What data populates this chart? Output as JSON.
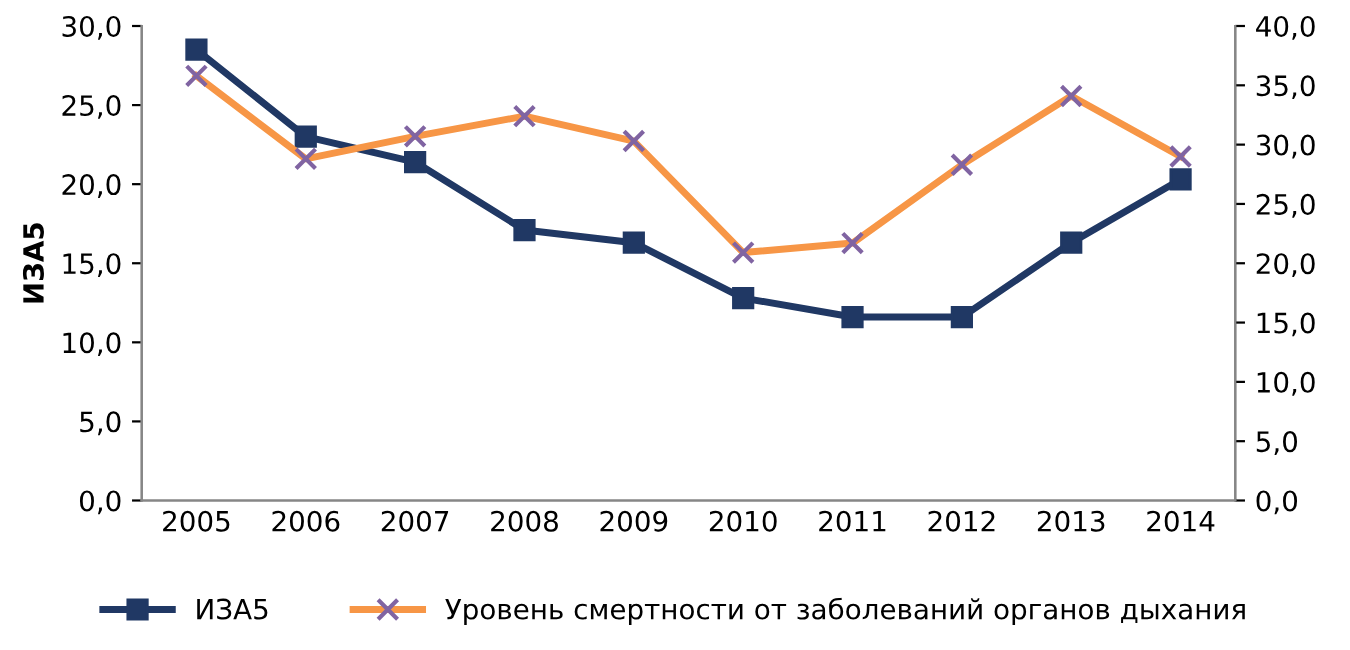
{
  "chart_data": {
    "type": "line",
    "ylabel": "ИЗА5",
    "categories": [
      "2005",
      "2006",
      "2007",
      "2008",
      "2009",
      "2010",
      "2011",
      "2012",
      "2013",
      "2014"
    ],
    "series": [
      {
        "name": "ИЗА5",
        "color": "#203864",
        "marker": "square",
        "values": [
          28.5,
          23.0,
          21.4,
          17.1,
          16.3,
          12.8,
          11.6,
          11.6,
          16.3,
          20.3
        ]
      },
      {
        "name": "Уровень смертности от заболеваний органов дыхания",
        "color": "#f79646",
        "marker": "cross",
        "axis": "y2",
        "values": [
          35.8,
          28.8,
          30.7,
          32.4,
          30.3,
          20.9,
          21.7,
          28.3,
          34.1,
          29.0
        ]
      }
    ],
    "ylim": [
      0,
      30
    ],
    "yticks": [
      {
        "value": 0,
        "label": "0,0"
      },
      {
        "value": 5,
        "label": "5,0"
      },
      {
        "value": 10,
        "label": "10,0"
      },
      {
        "value": 15,
        "label": "15,0"
      },
      {
        "value": 20,
        "label": "20,0"
      },
      {
        "value": 25,
        "label": "25,0"
      },
      {
        "value": 30,
        "label": "30,0"
      }
    ],
    "y2lim": [
      0,
      40
    ],
    "y2ticks": [
      {
        "value": 0,
        "label": "0,0"
      },
      {
        "value": 5,
        "label": "5,0"
      },
      {
        "value": 10,
        "label": "10,0"
      },
      {
        "value": 15,
        "label": "15,0"
      },
      {
        "value": 20,
        "label": "20,0"
      },
      {
        "value": 25,
        "label": "25,0"
      },
      {
        "value": 30,
        "label": "30,0"
      },
      {
        "value": 35,
        "label": "35,0"
      },
      {
        "value": 40,
        "label": "40,0"
      }
    ],
    "grid": false,
    "legend": "bottom"
  }
}
